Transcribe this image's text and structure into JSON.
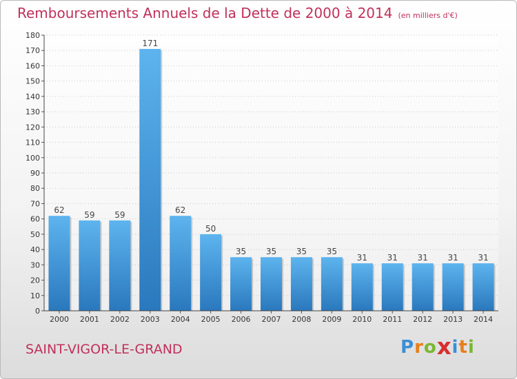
{
  "title": "Remboursements Annuels de la Dette de 2000 à 2014",
  "subtitle": "(en milliers d'€)",
  "commune": "SAINT-VIGOR-LE-GRAND",
  "logo": {
    "letters": [
      "P",
      "r",
      "o",
      "x",
      "i",
      "t",
      "i"
    ],
    "colors": [
      "#3b8fd6",
      "#e87e1c",
      "#7bb732",
      "#d92f2f",
      "#3b8fd6",
      "#e87e1c",
      "#7bb732"
    ]
  },
  "colors": {
    "title": "#c0305a",
    "bar": "#4aa3e6",
    "bar_dark": "#2f7fc1"
  },
  "chart_data": {
    "type": "bar",
    "categories": [
      "2000",
      "2001",
      "2002",
      "2003",
      "2004",
      "2005",
      "2006",
      "2007",
      "2008",
      "2009",
      "2010",
      "2011",
      "2012",
      "2013",
      "2014"
    ],
    "values": [
      62,
      59,
      59,
      171,
      62,
      50,
      35,
      35,
      35,
      35,
      31,
      31,
      31,
      31,
      31
    ],
    "ylim": [
      0,
      180
    ],
    "yticks": [
      0,
      10,
      20,
      30,
      40,
      50,
      60,
      70,
      80,
      90,
      100,
      110,
      120,
      130,
      140,
      150,
      160,
      170,
      180
    ],
    "grid": true,
    "data_labels": true
  }
}
